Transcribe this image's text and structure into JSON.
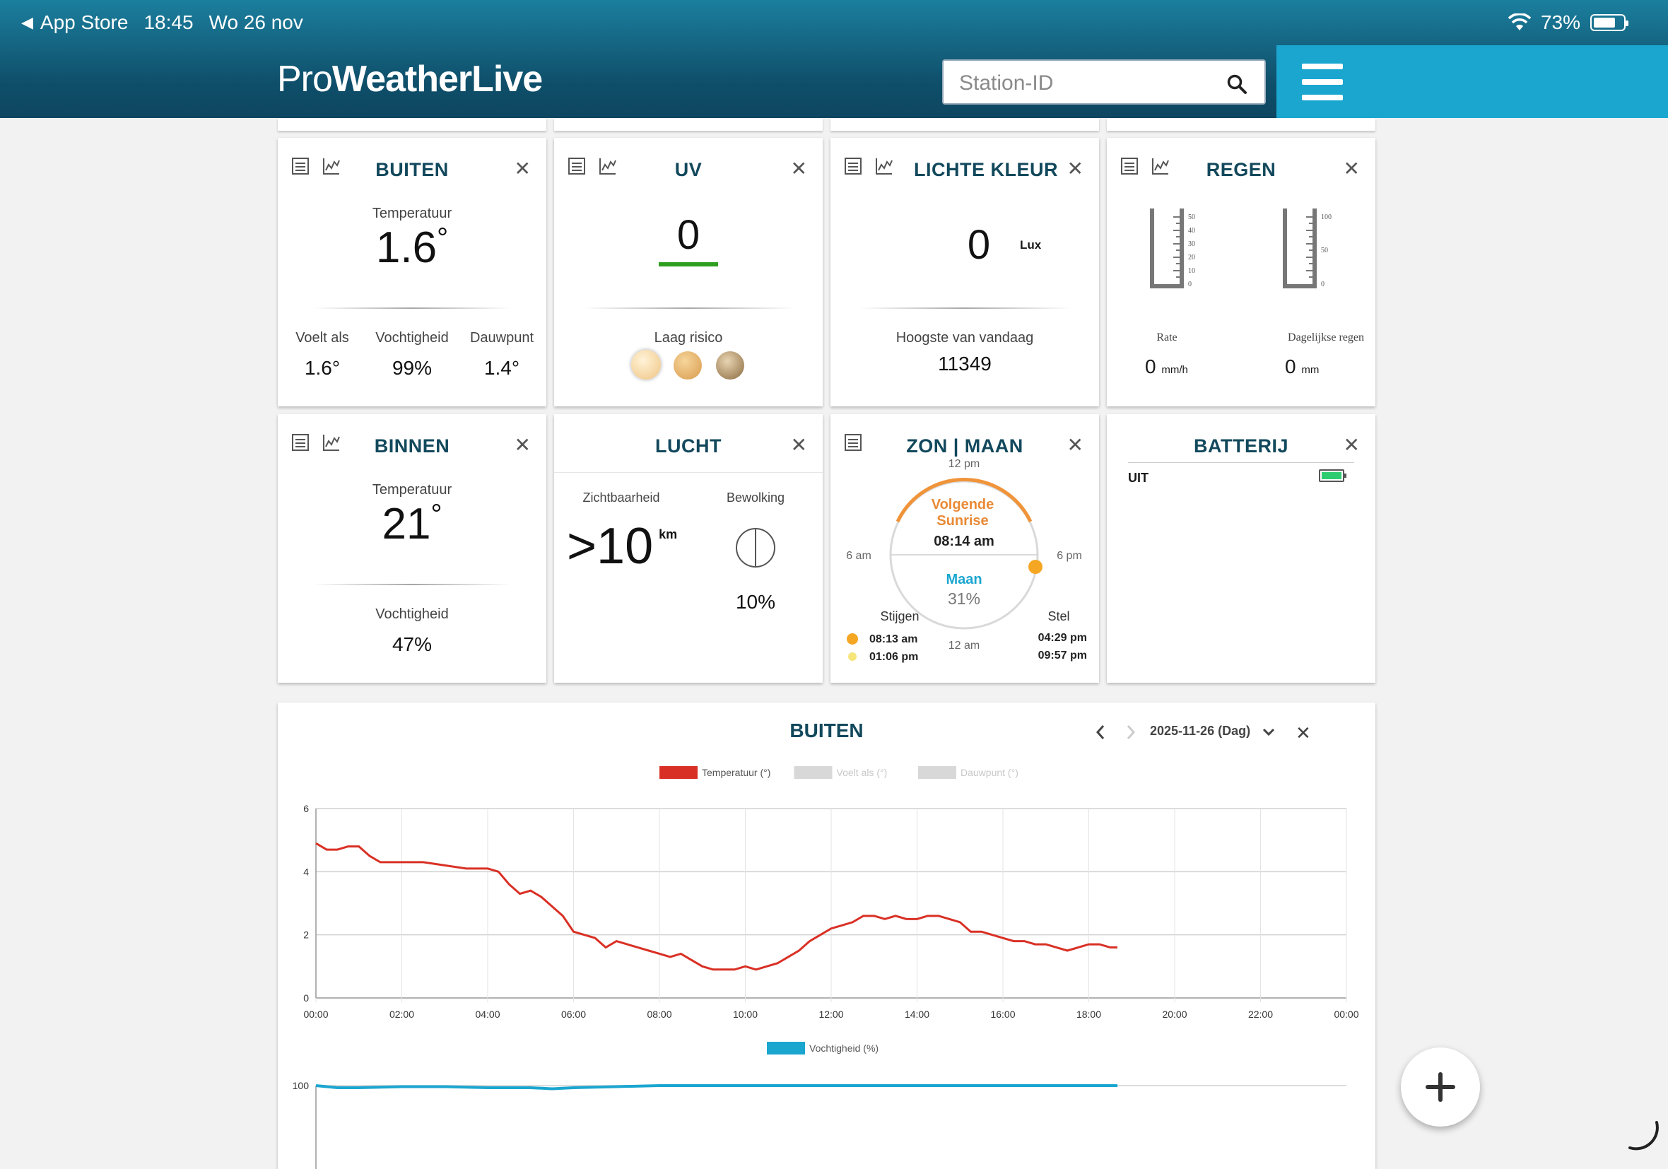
{
  "status_bar": {
    "back_app": "App Store",
    "time": "18:45",
    "date": "Wo 26 nov",
    "battery": "73%"
  },
  "header": {
    "logo_light": "Pro",
    "logo_bold": "WeatherLive",
    "search_placeholder": "Station-ID"
  },
  "cards": {
    "buiten": {
      "title": "BUITEN",
      "temp_label": "Temperatuur",
      "temp": "1.6",
      "degree": "°",
      "feels_label": "Voelt als",
      "feels": "1.6°",
      "hum_label": "Vochtigheid",
      "hum": "99%",
      "dew_label": "Dauwpunt",
      "dew": "1.4°"
    },
    "uv": {
      "title": "UV",
      "value": "0",
      "risk": "Laag risico"
    },
    "light": {
      "title": "LICHTE KLEUR",
      "value": "0",
      "unit": "Lux",
      "max_label": "Hoogste van vandaag",
      "max": "11349"
    },
    "rain": {
      "title": "REGEN",
      "rate_ticks": [
        "50",
        "40",
        "30",
        "20",
        "10",
        "0"
      ],
      "daily_ticks": [
        "100",
        "50",
        "0"
      ],
      "rate_label": "Rate",
      "daily_label": "Dagelijkse regen",
      "rate": "0",
      "rate_unit": "mm/h",
      "daily": "0",
      "daily_unit": "mm"
    },
    "binnen": {
      "title": "BINNEN",
      "temp_label": "Temperatuur",
      "temp": "21",
      "degree": "°",
      "hum_label": "Vochtigheid",
      "hum": "47%"
    },
    "lucht": {
      "title": "LUCHT",
      "vis_label": "Zichtbaarheid",
      "vis": ">10",
      "vis_unit": "km",
      "cloud_label": "Bewolking",
      "cloud": "10%"
    },
    "sun": {
      "title": "ZON | MAAN",
      "t12pm": "12 pm",
      "t6am": "6 am",
      "t6pm": "6 pm",
      "t12am": "12 am",
      "next_label_1": "Volgende",
      "next_label_2": "Sunrise",
      "next_time": "08:14 am",
      "moon_label": "Maan",
      "moon_pct": "31%",
      "rise_label": "Stijgen",
      "set_label": "Stel",
      "sun_rise": "08:13 am",
      "moon_rise": "01:06 pm",
      "sun_set": "04:29 pm",
      "moon_set": "09:57 pm",
      "sun_progress_fraction": 0.98
    },
    "battery": {
      "title": "BATTERIJ",
      "item": "UIT",
      "battery_color": "#2ecc71"
    }
  },
  "chart_panel": {
    "title": "BUITEN",
    "date": "2025-11-26 (Dag)"
  },
  "chart_data": [
    {
      "type": "line",
      "series": [
        {
          "name": "Temperatuur (°)",
          "color": "#d93025",
          "active": true,
          "x": [
            "00:00",
            "00:15",
            "00:30",
            "00:45",
            "01:00",
            "01:15",
            "01:30",
            "02:00",
            "02:30",
            "03:00",
            "03:30",
            "04:00",
            "04:15",
            "04:30",
            "04:45",
            "05:00",
            "05:15",
            "05:30",
            "05:45",
            "06:00",
            "06:15",
            "06:30",
            "06:45",
            "07:00",
            "07:15",
            "07:30",
            "07:45",
            "08:00",
            "08:15",
            "08:30",
            "08:45",
            "09:00",
            "09:15",
            "09:30",
            "09:45",
            "10:00",
            "10:15",
            "10:30",
            "10:45",
            "11:00",
            "11:15",
            "11:30",
            "11:45",
            "12:00",
            "12:15",
            "12:30",
            "12:45",
            "13:00",
            "13:15",
            "13:30",
            "13:45",
            "14:00",
            "14:15",
            "14:30",
            "14:45",
            "15:00",
            "15:15",
            "15:30",
            "15:45",
            "16:00",
            "16:15",
            "16:30",
            "16:45",
            "17:00",
            "17:15",
            "17:30",
            "17:45",
            "18:00",
            "18:15",
            "18:30",
            "18:40"
          ],
          "y": [
            4.9,
            4.7,
            4.7,
            4.8,
            4.8,
            4.5,
            4.3,
            4.3,
            4.3,
            4.2,
            4.1,
            4.1,
            4.0,
            3.6,
            3.3,
            3.4,
            3.2,
            2.9,
            2.6,
            2.1,
            2.0,
            1.9,
            1.6,
            1.8,
            1.7,
            1.6,
            1.5,
            1.4,
            1.3,
            1.4,
            1.2,
            1.0,
            0.9,
            0.9,
            0.9,
            1.0,
            0.9,
            1.0,
            1.1,
            1.3,
            1.5,
            1.8,
            2.0,
            2.2,
            2.3,
            2.4,
            2.6,
            2.6,
            2.5,
            2.6,
            2.5,
            2.5,
            2.6,
            2.6,
            2.5,
            2.4,
            2.1,
            2.1,
            2.0,
            1.9,
            1.8,
            1.8,
            1.7,
            1.7,
            1.6,
            1.5,
            1.6,
            1.7,
            1.7,
            1.6,
            1.6
          ]
        },
        {
          "name": "Voelt als (°)",
          "color": "#d8d8d8",
          "active": false
        },
        {
          "name": "Dauwpunt (°)",
          "color": "#d8d8d8",
          "active": false
        }
      ],
      "x_ticks": [
        "00:00",
        "02:00",
        "04:00",
        "06:00",
        "08:00",
        "10:00",
        "12:00",
        "14:00",
        "16:00",
        "18:00",
        "20:00",
        "22:00",
        "00:00"
      ],
      "y_ticks": [
        "0",
        "2",
        "4",
        "6"
      ],
      "ylim": [
        0,
        6
      ],
      "grid": true,
      "legend": "top-center"
    },
    {
      "type": "line",
      "series": [
        {
          "name": "Vochtigheid (%)",
          "color": "#1ba6d0",
          "active": true,
          "x": [
            "00:00",
            "00:15",
            "00:30",
            "01:00",
            "02:00",
            "03:00",
            "04:00",
            "05:00",
            "05:30",
            "06:00",
            "07:00",
            "08:00",
            "10:00",
            "12:00",
            "14:00",
            "16:00",
            "18:00",
            "18:40"
          ],
          "y": [
            100,
            99,
            98,
            98,
            99,
            99,
            98,
            98,
            97,
            98,
            99,
            100,
            100,
            100,
            100,
            100,
            100,
            100
          ]
        }
      ],
      "y_ticks": [
        "100"
      ],
      "legend": "top-center"
    }
  ]
}
